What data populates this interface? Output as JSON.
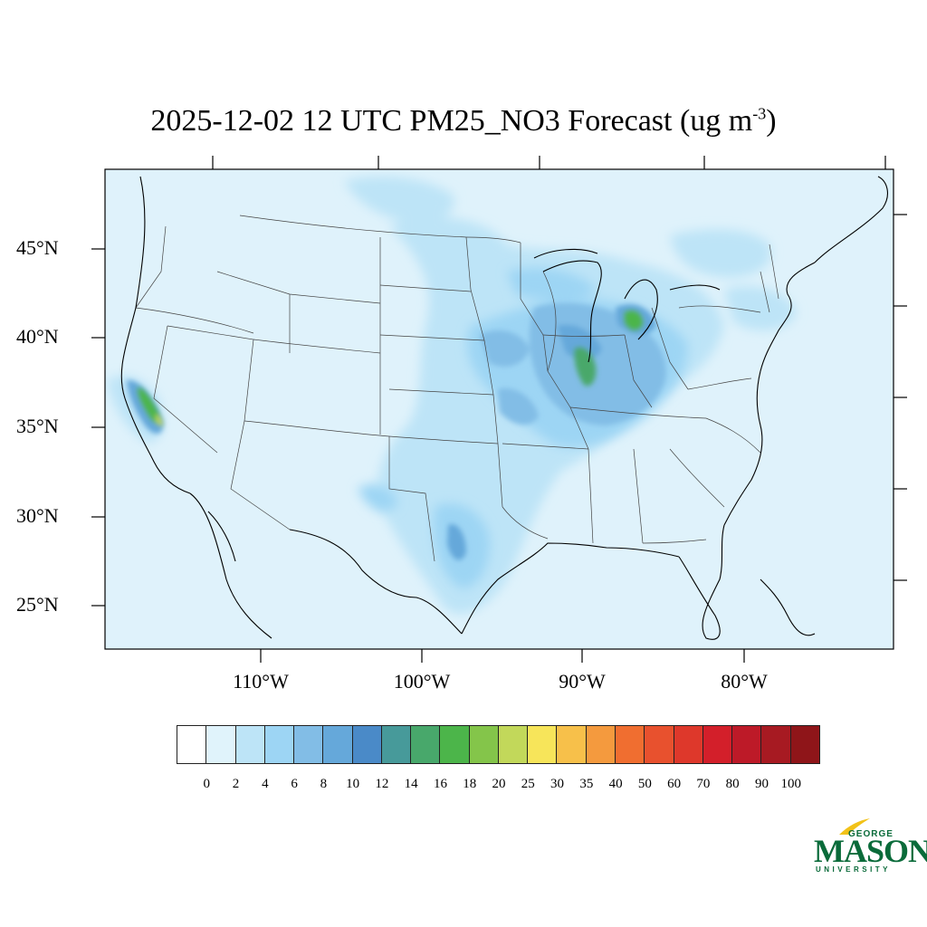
{
  "title": {
    "main": "2025-12-02 12 UTC PM25_NO3 Forecast (ug m",
    "superscript": "-3",
    "close": ")"
  },
  "map": {
    "background_color": "#dff2fb",
    "latitude_labels": [
      "45°N",
      "40°N",
      "35°N",
      "30°N",
      "25°N"
    ],
    "longitude_labels": [
      "110°W",
      "100°W",
      "90°W",
      "80°W"
    ]
  },
  "colorbar": {
    "labels": [
      "0",
      "2",
      "4",
      "6",
      "8",
      "10",
      "12",
      "14",
      "16",
      "18",
      "20",
      "25",
      "30",
      "35",
      "40",
      "50",
      "60",
      "70",
      "80",
      "90",
      "100"
    ],
    "colors": [
      "#ffffff",
      "#e0f3fb",
      "#bde4f7",
      "#9dd5f4",
      "#82bde6",
      "#65a8da",
      "#4a8ac8",
      "#479a9a",
      "#48a86b",
      "#4cb54a",
      "#84c54a",
      "#c2d85a",
      "#f7e55a",
      "#f7c04a",
      "#f49a3e",
      "#f06e30",
      "#e8512e",
      "#de382b",
      "#d31f2a",
      "#bd1a28",
      "#a71a22",
      "#8f1519"
    ]
  },
  "logo": {
    "line1": "GEORGE",
    "line2": "MASON",
    "line3": "UNIVERSITY",
    "color": "#0a6b3a",
    "accent": "#f2c218"
  }
}
